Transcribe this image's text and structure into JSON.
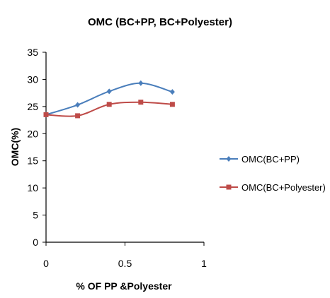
{
  "chart_data": {
    "type": "line",
    "title": "OMC  (BC+PP, BC+Polyester)",
    "xlabel": "% OF PP &Polyester",
    "ylabel": "OMC(%)",
    "xlim": [
      0,
      1
    ],
    "ylim": [
      0,
      35
    ],
    "x_ticks": [
      "0",
      "0.5",
      "1"
    ],
    "y_ticks": [
      "0",
      "5",
      "10",
      "15",
      "20",
      "25",
      "30",
      "35"
    ],
    "grid": false,
    "legend_position": "right",
    "series": [
      {
        "name": "OMC(BC+PP)",
        "color": "#4a7ebb",
        "marker": "diamond",
        "x": [
          0,
          0.2,
          0.4,
          0.6,
          0.8
        ],
        "y": [
          23.5,
          25.3,
          27.8,
          29.3,
          27.7
        ]
      },
      {
        "name": "OMC(BC+Polyester)",
        "color": "#be4b48",
        "marker": "square",
        "x": [
          0,
          0.2,
          0.4,
          0.6,
          0.8
        ],
        "y": [
          23.5,
          23.3,
          25.4,
          25.8,
          25.4
        ]
      }
    ]
  }
}
